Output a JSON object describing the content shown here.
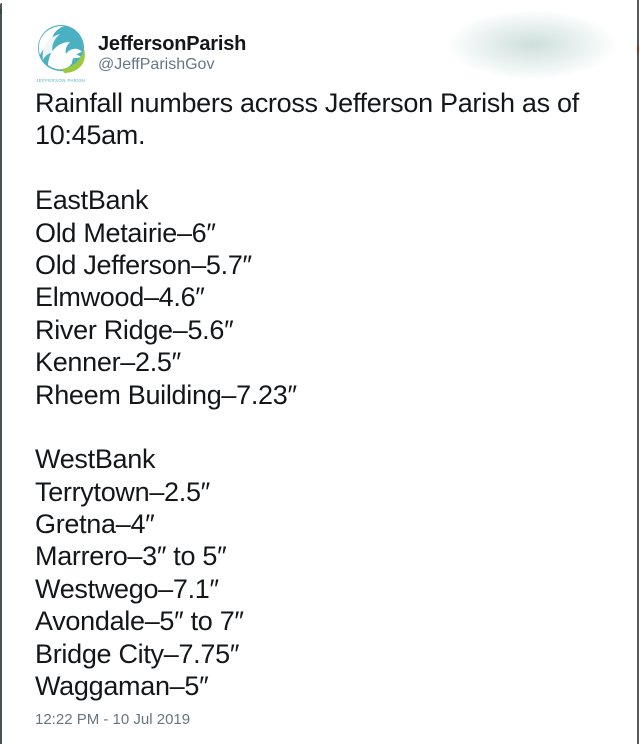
{
  "tweet": {
    "author": {
      "name": "JeffersonParish",
      "handle": "@JeffParishGov",
      "avatar": "jefferson-parish-pelican-logo",
      "avatar_caption": "JEFFERSON PARISH"
    },
    "body_lines": [
      "Rainfall numbers across Jefferson Parish as of",
      "10:45am.",
      "",
      "EastBank",
      "Old Metairie–6″",
      "Old Jefferson–5.7″",
      "Elmwood–4.6″",
      "River Ridge–5.6″",
      "Kenner–2.5″",
      "Rheem Building–7.23″",
      "",
      "WestBank",
      "Terrytown–2.5″",
      "Gretna–4″",
      "Marrero–3″ to 5″",
      "Westwego–7.1″",
      "Avondale–5″ to 7″",
      "Bridge City–7.75″",
      "Waggaman–5″"
    ],
    "rainfall": {
      "as_of": "10:45am",
      "east_bank": [
        {
          "location": "Old Metairie",
          "inches": "6″"
        },
        {
          "location": "Old Jefferson",
          "inches": "5.7″"
        },
        {
          "location": "Elmwood",
          "inches": "4.6″"
        },
        {
          "location": "River Ridge",
          "inches": "5.6″"
        },
        {
          "location": "Kenner",
          "inches": "2.5″"
        },
        {
          "location": "Rheem Building",
          "inches": "7.23″"
        }
      ],
      "west_bank": [
        {
          "location": "Terrytown",
          "inches": "2.5″"
        },
        {
          "location": "Gretna",
          "inches": "4″"
        },
        {
          "location": "Marrero",
          "inches": "3″ to 5″"
        },
        {
          "location": "Westwego",
          "inches": "7.1″"
        },
        {
          "location": "Avondale",
          "inches": "5″ to 7″"
        },
        {
          "location": "Bridge City",
          "inches": "7.75″"
        },
        {
          "location": "Waggaman",
          "inches": "5″"
        }
      ]
    },
    "timestamp": "12:22 PM - 10 Jul 2019"
  },
  "colors": {
    "text": "#14171a",
    "muted": "#657786",
    "timestamp": "#66757f",
    "logo_teal": "#4bb1c2",
    "logo_green": "#9cc83c",
    "background": "#ffffff"
  }
}
